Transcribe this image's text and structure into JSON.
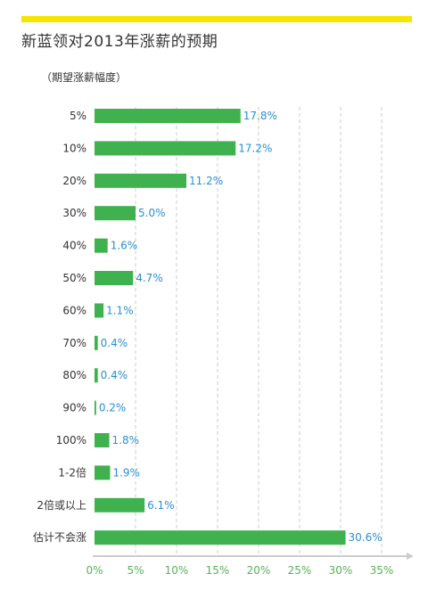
{
  "title": "新蓝领对2013年涨薪的预期",
  "subtitle": "（期望涨薪幅度）",
  "colors": {
    "bar": "#3fb24f",
    "value_label": "#2b8fd1",
    "tick_label": "#5aaf5a",
    "accent_bar": "#f5e600",
    "grid": "#cccccc"
  },
  "chart_data": {
    "type": "bar",
    "orientation": "horizontal",
    "categories": [
      "5%",
      "10%",
      "20%",
      "30%",
      "40%",
      "50%",
      "60%",
      "70%",
      "80%",
      "90%",
      "100%",
      "1-2倍",
      "2倍或以上",
      "估计不会涨"
    ],
    "values": [
      17.8,
      17.2,
      11.2,
      5.0,
      1.6,
      4.7,
      1.1,
      0.4,
      0.4,
      0.2,
      1.8,
      1.9,
      6.1,
      30.6
    ],
    "value_labels": [
      "17.8%",
      "17.2%",
      "11.2%",
      "5.0%",
      "1.6%",
      "4.7%",
      "1.1%",
      "0.4%",
      "0.4%",
      "0.2%",
      "1.8%",
      "1.9%",
      "6.1%",
      "30.6%"
    ],
    "xlim": [
      0,
      35
    ],
    "xticks": [
      0,
      5,
      10,
      15,
      20,
      25,
      30,
      35
    ],
    "xtick_labels": [
      "0%",
      "5%",
      "10%",
      "15%",
      "20%",
      "25%",
      "30%",
      "35%"
    ],
    "grid": true,
    "title": "新蓝领对2013年涨薪的预期",
    "ylabel": "（期望涨薪幅度）",
    "xlabel": ""
  }
}
